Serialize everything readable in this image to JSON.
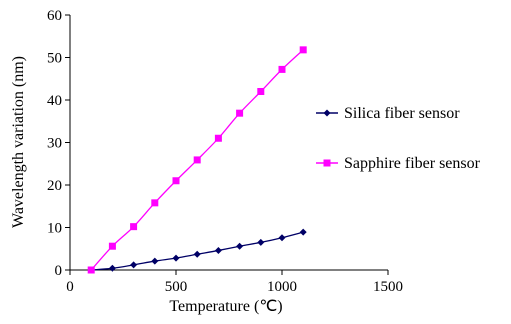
{
  "chart_data": {
    "type": "line",
    "xlabel": "Temperature (℃)",
    "ylabel": "Wavelength variation (nm)",
    "xlim": [
      0,
      1500
    ],
    "ylim": [
      0,
      60
    ],
    "x_ticks": [
      "0",
      "500",
      "1000",
      "1500"
    ],
    "y_ticks": [
      "0",
      "10",
      "20",
      "30",
      "40",
      "50",
      "60"
    ],
    "grid": false,
    "legend_position": "right",
    "series": [
      {
        "name": "Silica fiber sensor",
        "color": "#000066",
        "marker": "diamond",
        "x": [
          100,
          200,
          300,
          400,
          500,
          600,
          700,
          800,
          900,
          1000,
          1100
        ],
        "y": [
          0,
          0.4,
          1.2,
          2.1,
          2.8,
          3.7,
          4.6,
          5.6,
          6.5,
          7.6,
          8.9
        ]
      },
      {
        "name": "Sapphire fiber sensor",
        "color": "#ff00ff",
        "marker": "square",
        "x": [
          100,
          200,
          300,
          400,
          500,
          600,
          700,
          800,
          900,
          1000,
          1100
        ],
        "y": [
          0,
          5.6,
          10.2,
          15.8,
          21.0,
          25.9,
          31.0,
          36.9,
          42.0,
          47.2,
          51.8
        ]
      }
    ]
  }
}
